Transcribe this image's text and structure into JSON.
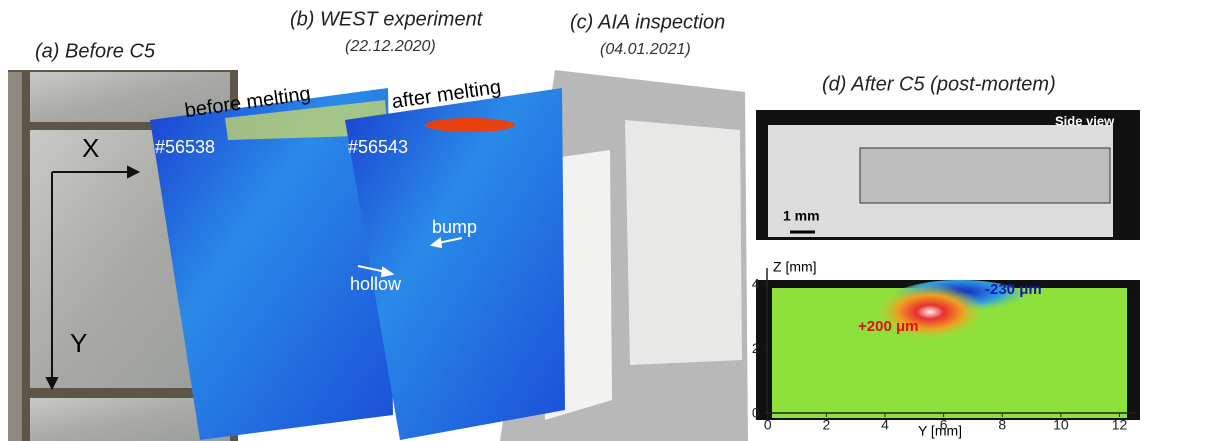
{
  "panels": [
    {
      "title": "(a) Before C5",
      "labels": [
        "X",
        "Y"
      ]
    },
    {
      "title": "(b) WEST experiment",
      "subtitle": "(22.12.2020)",
      "images": [
        {
          "caption": "before melting",
          "shot": "#56538"
        },
        {
          "caption": "after melting",
          "shot": "#56543",
          "annotations": [
            "bump",
            "hollow"
          ]
        }
      ]
    },
    {
      "title": "(c) AIA inspection",
      "subtitle": "(04.01.2021)"
    },
    {
      "title": "(d) After C5 (post-mortem)",
      "side_view": {
        "label": "Side view",
        "scale": "1 mm"
      },
      "profile": {
        "xlabel": "Y [mm]",
        "ylabel": "Z [mm]",
        "xlim": [
          -0.4,
          12.7
        ],
        "ylim": [
          -0.2,
          4.7
        ],
        "xticks": [
          0,
          2,
          4,
          6,
          8,
          10,
          12
        ],
        "yticks": [
          0,
          2,
          4
        ],
        "annotations": [
          "-230 μm",
          "+200 μm"
        ]
      }
    }
  ]
}
